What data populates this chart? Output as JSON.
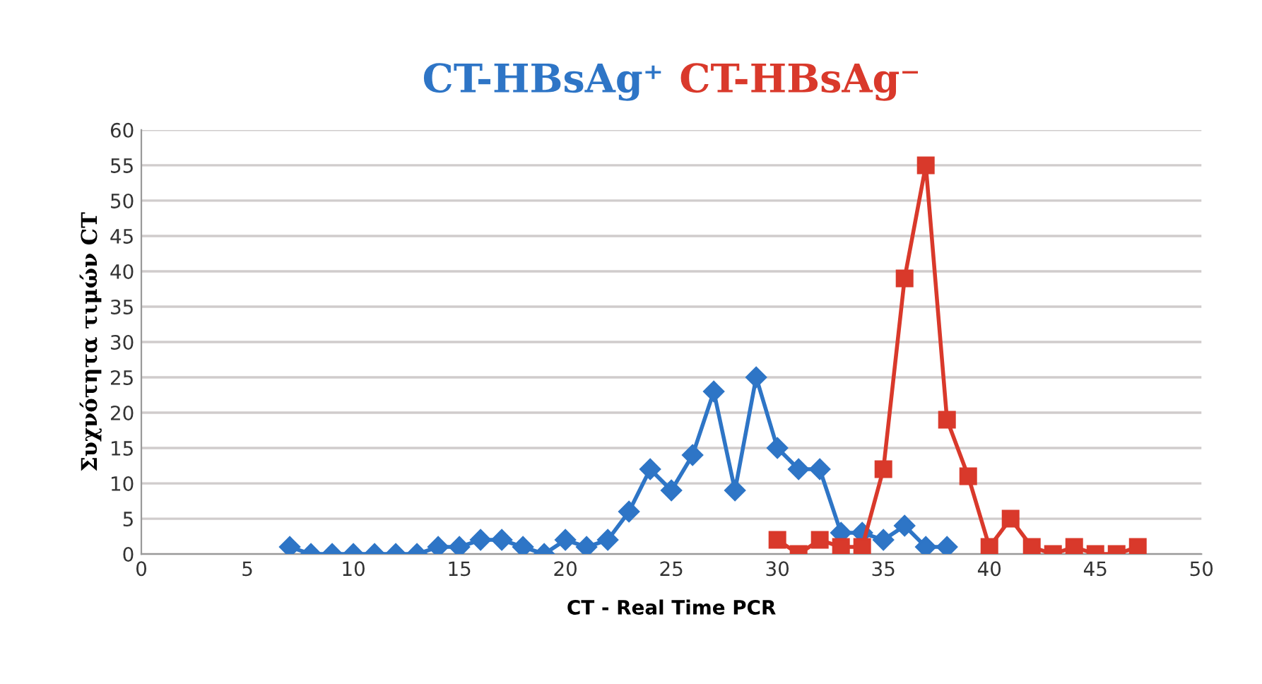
{
  "chart_data": {
    "type": "line",
    "xlabel": "CT - Real Time PCR",
    "ylabel": "Συχνότητα τιμών CT",
    "xlim": [
      0,
      50
    ],
    "xticks": [
      0,
      5,
      10,
      15,
      20,
      25,
      30,
      35,
      40,
      45,
      50
    ],
    "ylim": [
      0,
      60
    ],
    "yticks": [
      0,
      5,
      10,
      15,
      20,
      25,
      30,
      35,
      40,
      45,
      50,
      55,
      60
    ],
    "grid": "y",
    "legend": "top",
    "series": [
      {
        "name": "CT-HBsAg⁺",
        "color": "#2e75c6",
        "marker": "diamond",
        "x": [
          7,
          8,
          9,
          10,
          11,
          12,
          13,
          14,
          15,
          16,
          17,
          18,
          19,
          20,
          21,
          22,
          23,
          24,
          25,
          26,
          27,
          28,
          29,
          30,
          31,
          32,
          33,
          34,
          35,
          36,
          37,
          38
        ],
        "values": [
          1,
          0,
          0,
          0,
          0,
          0,
          0,
          1,
          1,
          2,
          2,
          1,
          0,
          2,
          1,
          2,
          6,
          12,
          9,
          14,
          23,
          9,
          25,
          15,
          12,
          12,
          3,
          3,
          2,
          4,
          1,
          1
        ]
      },
      {
        "name": "CT-HBsAg⁻",
        "color": "#d9392b",
        "marker": "square",
        "x": [
          30,
          31,
          32,
          33,
          34,
          35,
          36,
          37,
          38,
          39,
          40,
          41,
          42,
          43,
          44,
          45,
          46,
          47
        ],
        "values": [
          2,
          0,
          2,
          1,
          1,
          12,
          39,
          55,
          19,
          11,
          1,
          5,
          1,
          0,
          1,
          0,
          0,
          1
        ]
      }
    ]
  }
}
